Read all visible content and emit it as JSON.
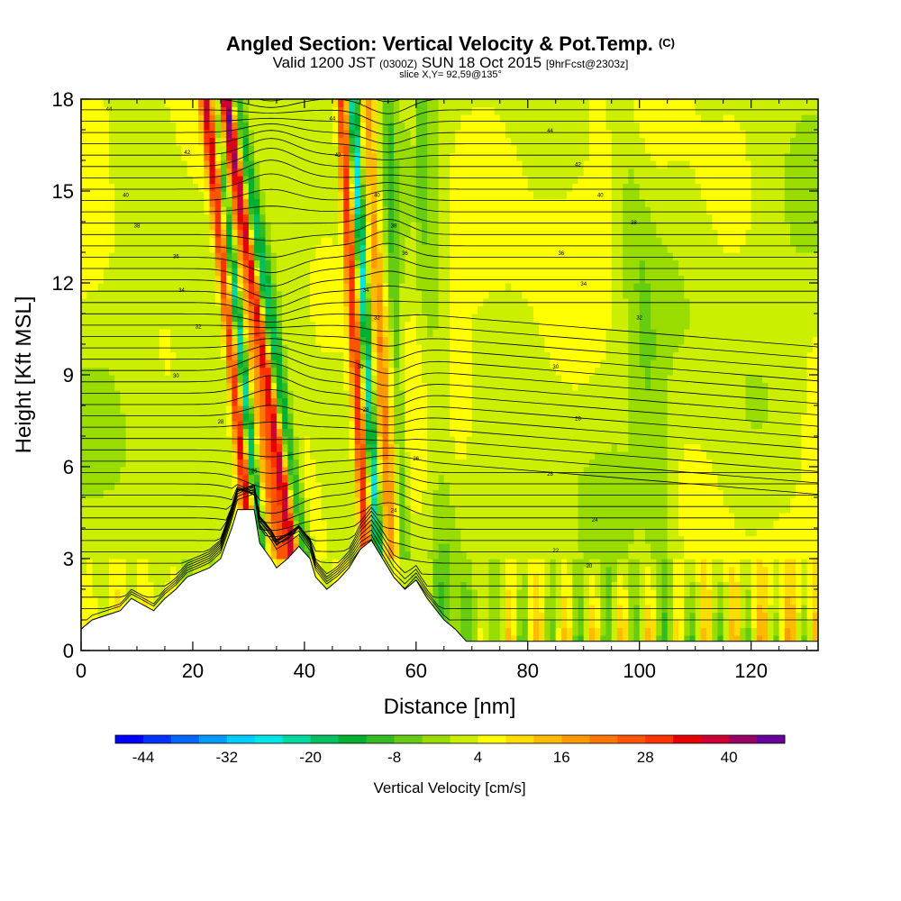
{
  "chart_data": {
    "type": "heatmap",
    "title": "Angled Section: Vertical Velocity & Pot.Temp.",
    "title_unit": "(C)",
    "subtitle_valid": "Valid 1200 JST",
    "subtitle_z": "(0300Z)",
    "subtitle_date": "SUN 18 Oct 2015",
    "subtitle_fcst": "[9hrFcst@2303z]",
    "slice_label": "slice X,Y= 92,59@135°",
    "xlabel": "Distance [nm]",
    "ylabel": "Height [Kft MSL]",
    "xlim": [
      0,
      132
    ],
    "ylim": [
      0,
      18
    ],
    "x_ticks": [
      0,
      20,
      40,
      60,
      80,
      100,
      120
    ],
    "y_ticks": [
      0,
      3,
      6,
      9,
      12,
      15,
      18
    ],
    "colorbar": {
      "label": "Vertical Velocity [cm/s]",
      "ticks": [
        -44,
        -32,
        -20,
        -8,
        4,
        16,
        28,
        40
      ],
      "range": [
        -48,
        48
      ],
      "colors": [
        "#0000ff",
        "#0033ff",
        "#0066ff",
        "#0099ff",
        "#00ccff",
        "#00e5e5",
        "#00d8a0",
        "#00c060",
        "#00b030",
        "#33bb22",
        "#66cc11",
        "#99dd00",
        "#ccee00",
        "#ffff00",
        "#ffdd00",
        "#ffbb00",
        "#ff9900",
        "#ff7700",
        "#ff5500",
        "#ff3300",
        "#e60000",
        "#cc0033",
        "#990066",
        "#660099"
      ]
    },
    "terrain": [
      [
        0,
        0.7
      ],
      [
        2,
        1.0
      ],
      [
        7,
        1.3
      ],
      [
        9,
        1.7
      ],
      [
        13,
        1.3
      ],
      [
        15,
        1.7
      ],
      [
        17,
        2.0
      ],
      [
        19,
        2.4
      ],
      [
        23,
        2.7
      ],
      [
        25,
        3.0
      ],
      [
        27,
        4.0
      ],
      [
        28,
        4.6
      ],
      [
        31,
        4.6
      ],
      [
        32,
        3.5
      ],
      [
        34,
        3.0
      ],
      [
        35,
        2.7
      ],
      [
        37,
        3.0
      ],
      [
        39,
        3.4
      ],
      [
        41,
        3.0
      ],
      [
        42,
        2.4
      ],
      [
        44,
        2.0
      ],
      [
        46,
        2.3
      ],
      [
        48,
        2.7
      ],
      [
        50,
        3.3
      ],
      [
        52,
        3.6
      ],
      [
        54,
        3.0
      ],
      [
        56,
        2.4
      ],
      [
        58,
        2.0
      ],
      [
        60,
        2.3
      ],
      [
        62,
        1.7
      ],
      [
        65,
        1.0
      ],
      [
        67,
        0.7
      ],
      [
        69,
        0.3
      ],
      [
        74,
        0.3
      ],
      [
        80,
        0.3
      ],
      [
        90,
        0.3
      ],
      [
        100,
        0.3
      ],
      [
        110,
        0.3
      ],
      [
        120,
        0.3
      ],
      [
        128,
        0.3
      ],
      [
        132,
        0.3
      ]
    ],
    "theta_labels": [
      {
        "x": 5,
        "y": 17.7,
        "text": "44"
      },
      {
        "x": 45,
        "y": 17.4,
        "text": "44"
      },
      {
        "x": 84,
        "y": 17.0,
        "text": "44"
      },
      {
        "x": 19,
        "y": 16.3,
        "text": "42"
      },
      {
        "x": 46,
        "y": 16.2,
        "text": "42"
      },
      {
        "x": 89,
        "y": 15.9,
        "text": "42"
      },
      {
        "x": 8,
        "y": 14.9,
        "text": "40"
      },
      {
        "x": 53,
        "y": 14.9,
        "text": "40"
      },
      {
        "x": 93,
        "y": 14.9,
        "text": "40"
      },
      {
        "x": 10,
        "y": 13.9,
        "text": "38"
      },
      {
        "x": 56,
        "y": 13.9,
        "text": "38"
      },
      {
        "x": 99,
        "y": 14.0,
        "text": "38"
      },
      {
        "x": 17,
        "y": 12.9,
        "text": "36"
      },
      {
        "x": 58,
        "y": 13.0,
        "text": "36"
      },
      {
        "x": 86,
        "y": 13.0,
        "text": "36"
      },
      {
        "x": 18,
        "y": 11.8,
        "text": "34"
      },
      {
        "x": 51,
        "y": 11.8,
        "text": "34"
      },
      {
        "x": 90,
        "y": 12.0,
        "text": "34"
      },
      {
        "x": 21,
        "y": 10.6,
        "text": "32"
      },
      {
        "x": 53,
        "y": 10.9,
        "text": "32"
      },
      {
        "x": 100,
        "y": 10.9,
        "text": "32"
      },
      {
        "x": 17,
        "y": 9.0,
        "text": "30"
      },
      {
        "x": 50,
        "y": 9.3,
        "text": "30"
      },
      {
        "x": 85,
        "y": 9.3,
        "text": "30"
      },
      {
        "x": 25,
        "y": 7.5,
        "text": "28"
      },
      {
        "x": 51,
        "y": 7.9,
        "text": "28"
      },
      {
        "x": 89,
        "y": 7.6,
        "text": "28"
      },
      {
        "x": 31,
        "y": 5.9,
        "text": "26"
      },
      {
        "x": 60,
        "y": 6.3,
        "text": "26"
      },
      {
        "x": 84,
        "y": 5.8,
        "text": "26"
      },
      {
        "x": 56,
        "y": 4.6,
        "text": "24"
      },
      {
        "x": 92,
        "y": 4.3,
        "text": "24"
      },
      {
        "x": 85,
        "y": 3.3,
        "text": "22"
      },
      {
        "x": 91,
        "y": 2.8,
        "text": "20"
      }
    ]
  }
}
